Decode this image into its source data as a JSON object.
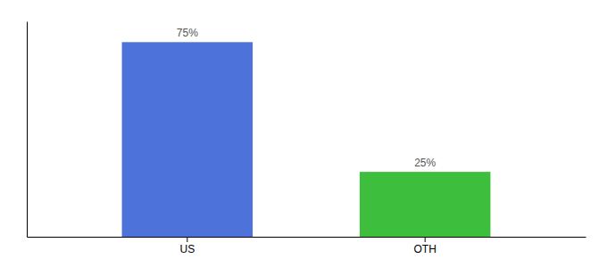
{
  "chart_data": {
    "type": "bar",
    "categories": [
      "US",
      "OTH"
    ],
    "values": [
      75,
      25
    ],
    "value_labels": [
      "75%",
      "25%"
    ],
    "colors": [
      "#4d72d9",
      "#3dbf3d"
    ],
    "ylim": [
      0,
      83
    ],
    "data_labels": true,
    "tick_labels": "x"
  }
}
